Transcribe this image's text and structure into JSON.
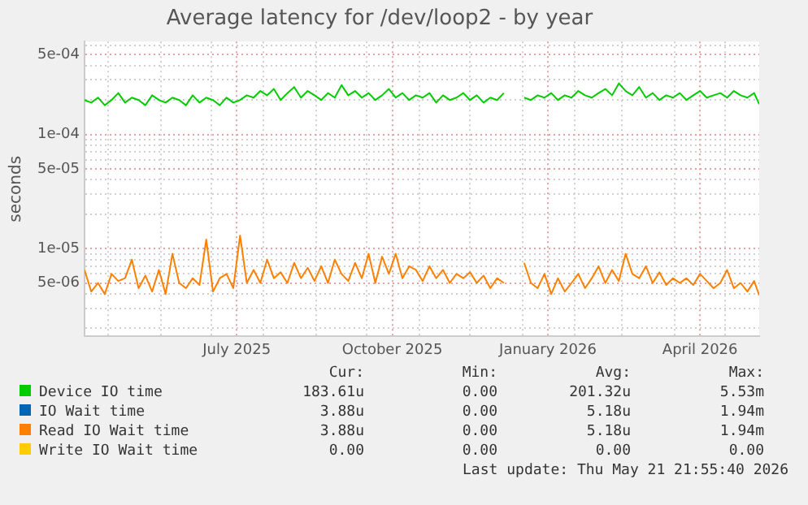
{
  "chart_data": {
    "type": "line",
    "title": "Average latency for /dev/loop2 - by year",
    "ylabel": "seconds",
    "log": "y",
    "grid": true,
    "legend": "bottom",
    "marker": "none",
    "line_style": "solid",
    "x": [
      "2025-04-17",
      "2025-04-21",
      "2025-04-25",
      "2025-04-29",
      "2025-05-03",
      "2025-05-07",
      "2025-05-11",
      "2025-05-15",
      "2025-05-19",
      "2025-05-23",
      "2025-05-27",
      "2025-05-31",
      "2025-06-04",
      "2025-06-08",
      "2025-06-12",
      "2025-06-16",
      "2025-06-20",
      "2025-06-24",
      "2025-06-28",
      "2025-07-02",
      "2025-07-06",
      "2025-07-10",
      "2025-07-14",
      "2025-07-18",
      "2025-07-22",
      "2025-07-26",
      "2025-07-30",
      "2025-08-03",
      "2025-08-07",
      "2025-08-11",
      "2025-08-15",
      "2025-08-19",
      "2025-08-23",
      "2025-08-27",
      "2025-08-31",
      "2025-09-04",
      "2025-09-08",
      "2025-09-12",
      "2025-09-16",
      "2025-09-20",
      "2025-09-24",
      "2025-09-28",
      "2025-10-02",
      "2025-10-06",
      "2025-10-10",
      "2025-10-14",
      "2025-10-18",
      "2025-10-22",
      "2025-10-26",
      "2025-10-30",
      "2025-11-03",
      "2025-11-07",
      "2025-11-11",
      "2025-11-15",
      "2025-11-19",
      "2025-11-23",
      "2025-11-27",
      "2025-12-01",
      "2025-12-05",
      "2025-12-09",
      "2025-12-13",
      "2025-12-17",
      "2025-12-21",
      "2025-12-25",
      "2025-12-29",
      "2026-01-02",
      "2026-01-06",
      "2026-01-10",
      "2026-01-14",
      "2026-01-18",
      "2026-01-22",
      "2026-01-26",
      "2026-01-30",
      "2026-02-03",
      "2026-02-07",
      "2026-02-11",
      "2026-02-15",
      "2026-02-19",
      "2026-02-23",
      "2026-02-27",
      "2026-03-03",
      "2026-03-07",
      "2026-03-11",
      "2026-03-15",
      "2026-03-19",
      "2026-03-23",
      "2026-03-27",
      "2026-03-31",
      "2026-04-04",
      "2026-04-08",
      "2026-04-12",
      "2026-04-16",
      "2026-04-20",
      "2026-04-24",
      "2026-04-28",
      "2026-05-02",
      "2026-05-06",
      "2026-05-10",
      "2026-05-14",
      "2026-05-18",
      "2026-05-21"
    ],
    "xlim": [
      "2025-04-17",
      "2026-05-21"
    ],
    "xticks": [
      {
        "value": "2025-05-01",
        "label": null
      },
      {
        "value": "2025-06-01",
        "label": null
      },
      {
        "value": "2025-07-01",
        "label": null
      },
      {
        "value": "2025-07-16",
        "label": "July 2025"
      },
      {
        "value": "2025-08-01",
        "label": null
      },
      {
        "value": "2025-09-01",
        "label": null
      },
      {
        "value": "2025-10-01",
        "label": null
      },
      {
        "value": "2025-10-16",
        "label": "October 2025"
      },
      {
        "value": "2025-11-01",
        "label": null
      },
      {
        "value": "2025-12-01",
        "label": null
      },
      {
        "value": "2026-01-01",
        "label": null
      },
      {
        "value": "2026-01-16",
        "label": "January 2026"
      },
      {
        "value": "2026-02-01",
        "label": null
      },
      {
        "value": "2026-03-01",
        "label": null
      },
      {
        "value": "2026-04-01",
        "label": null
      },
      {
        "value": "2026-04-16",
        "label": "April 2026"
      },
      {
        "value": "2026-05-01",
        "label": null
      }
    ],
    "ylim": [
      1.7e-06,
      0.00065
    ],
    "yticks": [
      {
        "value": 2e-06,
        "label": null
      },
      {
        "value": 3e-06,
        "label": null
      },
      {
        "value": 4e-06,
        "label": null
      },
      {
        "value": 5e-06,
        "label": "5e-06"
      },
      {
        "value": 6e-06,
        "label": null
      },
      {
        "value": 7e-06,
        "label": null
      },
      {
        "value": 8e-06,
        "label": null
      },
      {
        "value": 9e-06,
        "label": null
      },
      {
        "value": 1e-05,
        "label": "1e-05"
      },
      {
        "value": 2e-05,
        "label": null
      },
      {
        "value": 3e-05,
        "label": null
      },
      {
        "value": 4e-05,
        "label": null
      },
      {
        "value": 5e-05,
        "label": "5e-05"
      },
      {
        "value": 6e-05,
        "label": null
      },
      {
        "value": 7e-05,
        "label": null
      },
      {
        "value": 8e-05,
        "label": null
      },
      {
        "value": 9e-05,
        "label": null
      },
      {
        "value": 0.0001,
        "label": "1e-04"
      },
      {
        "value": 0.0002,
        "label": null
      },
      {
        "value": 0.0003,
        "label": null
      },
      {
        "value": 0.0004,
        "label": null
      },
      {
        "value": 0.0005,
        "label": "5e-04"
      },
      {
        "value": 0.0006,
        "label": null
      }
    ],
    "series": [
      {
        "name": "Device IO time",
        "color": "#00cc00",
        "values": [
          0.0002,
          0.00019,
          0.00021,
          0.00018,
          0.0002,
          0.00023,
          0.00019,
          0.00021,
          0.0002,
          0.00018,
          0.00022,
          0.0002,
          0.00019,
          0.00021,
          0.0002,
          0.00018,
          0.00022,
          0.00019,
          0.00021,
          0.0002,
          0.00018,
          0.00021,
          0.00019,
          0.0002,
          0.00022,
          0.00021,
          0.00024,
          0.00022,
          0.00025,
          0.0002,
          0.00023,
          0.00026,
          0.00021,
          0.00024,
          0.00022,
          0.0002,
          0.00023,
          0.00021,
          0.00027,
          0.00022,
          0.00024,
          0.00021,
          0.00023,
          0.0002,
          0.00022,
          0.00025,
          0.00021,
          0.00023,
          0.0002,
          0.00022,
          0.00021,
          0.00023,
          0.00019,
          0.00022,
          0.0002,
          0.00021,
          0.00023,
          0.0002,
          0.00022,
          0.00019,
          0.00021,
          0.0002,
          0.00023,
          null,
          null,
          0.00021,
          0.0002,
          0.00022,
          0.00021,
          0.00023,
          0.0002,
          0.00022,
          0.00021,
          0.00024,
          0.00022,
          0.00021,
          0.00023,
          0.00025,
          0.00022,
          0.00028,
          0.00024,
          0.00022,
          0.00026,
          0.00021,
          0.00023,
          0.0002,
          0.00022,
          0.00021,
          0.00023,
          0.0002,
          0.00022,
          0.00024,
          0.00021,
          0.00022,
          0.00023,
          0.00021,
          0.00024,
          0.00022,
          0.00021,
          0.00023,
          0.000184
        ]
      },
      {
        "name": "IO Wait time",
        "color": "#0066b3",
        "values": [
          null,
          null,
          null,
          null,
          null,
          null,
          null,
          null,
          null,
          null,
          null,
          null,
          null,
          null,
          null,
          null,
          null,
          null,
          null,
          null,
          null,
          null,
          null,
          null,
          null,
          null,
          null,
          null,
          null,
          null,
          null,
          null,
          null,
          null,
          null,
          null,
          null,
          null,
          null,
          null,
          null,
          null,
          null,
          null,
          null,
          null,
          null,
          null,
          null,
          null,
          null,
          null,
          null,
          null,
          null,
          null,
          null,
          null,
          null,
          null,
          null,
          null,
          null,
          null,
          null,
          null,
          null,
          null,
          null,
          null,
          null,
          null,
          null,
          null,
          null,
          null,
          null,
          null,
          null,
          null,
          null,
          null,
          null,
          null,
          null,
          null,
          null,
          null,
          null,
          null,
          null,
          null,
          null,
          null,
          null,
          null,
          null,
          null,
          null,
          null,
          null
        ]
      },
      {
        "name": "Read IO Wait time",
        "color": "#ff8000",
        "values": [
          6.5e-06,
          4.2e-06,
          5e-06,
          4e-06,
          6e-06,
          5.2e-06,
          5.5e-06,
          8e-06,
          4.5e-06,
          5.8e-06,
          4.2e-06,
          6.5e-06,
          4e-06,
          9e-06,
          5e-06,
          4.5e-06,
          5.5e-06,
          4.8e-06,
          1.2e-05,
          4.2e-06,
          5.5e-06,
          6e-06,
          4.5e-06,
          1.3e-05,
          5e-06,
          6.5e-06,
          5e-06,
          8e-06,
          5.5e-06,
          6.2e-06,
          5e-06,
          7.5e-06,
          5.5e-06,
          6.8e-06,
          5.2e-06,
          7e-06,
          5e-06,
          8e-06,
          6e-06,
          5.2e-06,
          7.5e-06,
          5.5e-06,
          9e-06,
          5e-06,
          8.5e-06,
          6e-06,
          9e-06,
          5.5e-06,
          7e-06,
          6.5e-06,
          5.2e-06,
          7e-06,
          5.5e-06,
          6.5e-06,
          5e-06,
          6e-06,
          5.5e-06,
          6.2e-06,
          5e-06,
          5.8e-06,
          4.5e-06,
          5.5e-06,
          5e-06,
          null,
          null,
          7.5e-06,
          5e-06,
          4.5e-06,
          6e-06,
          4e-06,
          5.5e-06,
          4.2e-06,
          5e-06,
          6e-06,
          4.5e-06,
          5.5e-06,
          7e-06,
          5e-06,
          6.5e-06,
          5.2e-06,
          9e-06,
          6e-06,
          5.5e-06,
          7e-06,
          5e-06,
          6.2e-06,
          4.8e-06,
          5.5e-06,
          5e-06,
          5.5e-06,
          4.8e-06,
          6e-06,
          5.2e-06,
          4.5e-06,
          5e-06,
          6.5e-06,
          4.5e-06,
          5e-06,
          4.2e-06,
          5.2e-06,
          3.9e-06
        ]
      },
      {
        "name": "Write IO Wait time",
        "color": "#ffcc00",
        "values": [
          null,
          null,
          null,
          null,
          null,
          null,
          null,
          null,
          null,
          null,
          null,
          null,
          null,
          null,
          null,
          null,
          null,
          null,
          null,
          null,
          null,
          null,
          null,
          null,
          null,
          null,
          null,
          null,
          null,
          null,
          null,
          null,
          null,
          null,
          null,
          null,
          null,
          null,
          null,
          null,
          null,
          null,
          null,
          null,
          null,
          null,
          null,
          null,
          null,
          null,
          null,
          null,
          null,
          null,
          null,
          null,
          null,
          null,
          null,
          null,
          null,
          null,
          null,
          null,
          null,
          null,
          null,
          null,
          null,
          null,
          null,
          null,
          null,
          null,
          null,
          null,
          null,
          null,
          null,
          null,
          null,
          null,
          null,
          null,
          null,
          null,
          null,
          null,
          null,
          null,
          null,
          null,
          null,
          null,
          null,
          null,
          null,
          null,
          null,
          null,
          null
        ]
      }
    ],
    "annotations": [
      "Cur:",
      "Min:",
      "Avg:",
      "Max:",
      "183.61u",
      "0.00",
      "201.32u",
      "5.53m",
      "3.88u",
      "0.00",
      "5.18u",
      "1.94m",
      "3.88u",
      "0.00",
      "5.18u",
      "1.94m",
      "0.00",
      "0.00",
      "0.00",
      "0.00",
      "Last update: Thu May 21 21:55:40 2026"
    ]
  }
}
